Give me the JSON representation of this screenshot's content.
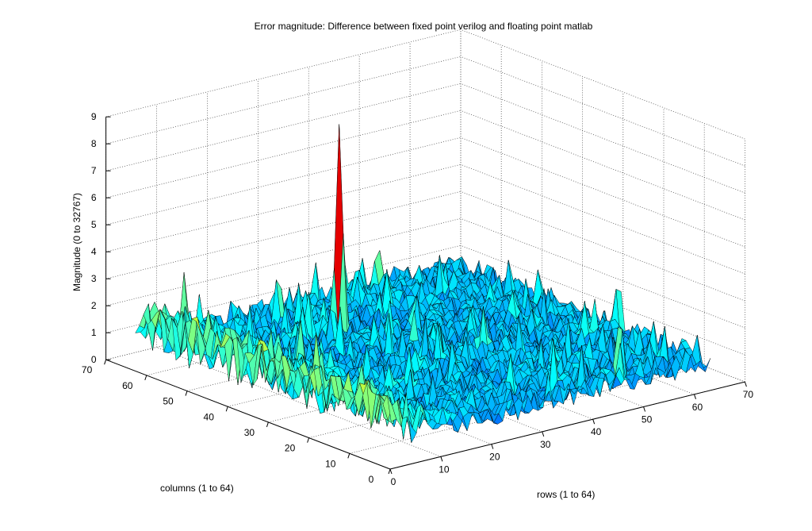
{
  "chart_data": {
    "type": "surface",
    "title": "Error magnitude: Difference between fixed point verilog and floating point matlab",
    "xlabel": "rows (1 to 64)",
    "ylabel": "columns (1 to 64)",
    "zlabel": "Magnitude (0 to 32767)",
    "xlim": [
      0,
      70
    ],
    "ylim": [
      0,
      70
    ],
    "zlim": [
      0,
      9
    ],
    "xticks": [
      "0",
      "10",
      "20",
      "30",
      "40",
      "50",
      "60",
      "70"
    ],
    "yticks": [
      "0",
      "10",
      "20",
      "30",
      "40",
      "50",
      "60",
      "70"
    ],
    "zticks": [
      "0",
      "1",
      "2",
      "3",
      "4",
      "5",
      "6",
      "7",
      "8",
      "9"
    ],
    "grid": true,
    "colormap": "jet",
    "grid_size": [
      64,
      64
    ],
    "typical_magnitude_range": [
      0.5,
      2.5
    ],
    "peak": {
      "row": 30,
      "column": 50,
      "value": 8.5
    }
  },
  "colors": {
    "edge": "#000000",
    "grid": "#555555",
    "background": "#ffffff"
  }
}
